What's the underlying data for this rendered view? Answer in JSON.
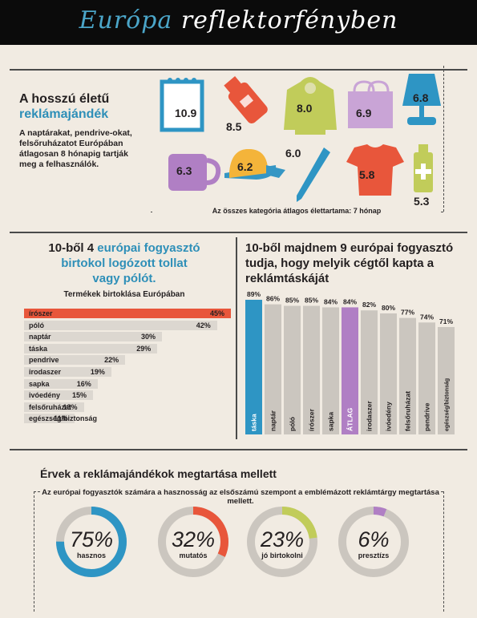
{
  "header": {
    "title_part1": "Európa",
    "title_part2": "reflektorfényben"
  },
  "lifetime": {
    "title_line1": "A hosszú életű",
    "title_line2": "reklámajándék",
    "description": "A naptárakat, pendrive-okat, felsőruházatot Európában átlagosan 8 hónapig tartják meg a felhasználók.",
    "average_note": "Az összes kategória átlagos élettartama: 7 hónap",
    "items": [
      {
        "icon": "calendar-icon",
        "value": "10.9"
      },
      {
        "icon": "usb-drive-icon",
        "value": "8.5"
      },
      {
        "icon": "hoodie-icon",
        "value": "8.0"
      },
      {
        "icon": "bag-icon",
        "value": "6.9"
      },
      {
        "icon": "lamp-icon",
        "value": "6.8"
      },
      {
        "icon": "mug-icon",
        "value": "6.3"
      },
      {
        "icon": "cap-icon",
        "value": "6.2"
      },
      {
        "icon": "pen-icon",
        "value": "6.0"
      },
      {
        "icon": "tshirt-icon",
        "value": "5.8"
      },
      {
        "icon": "medicine-bottle-icon",
        "value": "5.3"
      }
    ]
  },
  "ownership": {
    "title_prefix": "10-ből 4 ",
    "title_highlight": "európai fogyasztó",
    "title_line2": "birtokol logózott tollat",
    "title_line3": "vagy pólót.",
    "subtitle": "Termékek birtoklása Európában"
  },
  "recall": {
    "title": "10-ből majdnem 9 európai fogyasztó tudja, hogy melyik cégtől kapta a reklámtáskáját"
  },
  "reasons": {
    "title": "Érvek a reklámajándékok megtartása mellett",
    "description": "Az európai fogyasztók számára a hasznosság az elsőszámú szempont a emblémázott reklámtárgy megtartása mellett.",
    "items": [
      {
        "percent": "75%",
        "value": 75,
        "label": "hasznos",
        "color": "#2e95c4"
      },
      {
        "percent": "32%",
        "value": 32,
        "label": "mutatós",
        "color": "#e8563b"
      },
      {
        "percent": "23%",
        "value": 23,
        "label": "jó birtokolni",
        "color": "#c1cc5a"
      },
      {
        "percent": "6%",
        "value": 6,
        "label": "presztízs",
        "color": "#b07fc4"
      }
    ]
  },
  "colors": {
    "blue": "#2e95c4",
    "orange": "#e8563b",
    "purple": "#b07fc4",
    "green": "#c1cc5a",
    "gray": "#cbc6bf"
  },
  "chart_data": [
    {
      "type": "bar",
      "orientation": "horizontal",
      "title": "Termékek birtoklása Európában",
      "categories": [
        "írószer",
        "póló",
        "naptár",
        "táska",
        "pendrive",
        "irodaszer",
        "sapka",
        "ivóedény",
        "felsőruházat",
        "egészség/biztonság"
      ],
      "values": [
        45,
        42,
        30,
        29,
        22,
        19,
        16,
        15,
        13,
        11
      ],
      "labels": [
        "45%",
        "42%",
        "30%",
        "29%",
        "22%",
        "19%",
        "16%",
        "15%",
        "13%",
        "11%"
      ],
      "highlight": "írószer",
      "xlim": [
        0,
        45
      ]
    },
    {
      "type": "bar",
      "orientation": "vertical",
      "categories": [
        "táska",
        "naptár",
        "póló",
        "írószer",
        "sapka",
        "ÁTLAG",
        "irodaszer",
        "ivóedény",
        "felsőruházat",
        "pendrive",
        "egészség/biztonság"
      ],
      "values": [
        89,
        86,
        85,
        85,
        84,
        84,
        82,
        80,
        77,
        74,
        71
      ],
      "labels": [
        "89%",
        "86%",
        "85%",
        "85%",
        "84%",
        "84%",
        "82%",
        "80%",
        "77%",
        "74%",
        "71%"
      ],
      "highlight": {
        "táska": "#2e95c4",
        "ÁTLAG": "#b07fc4"
      },
      "ylim": [
        0,
        89
      ]
    }
  ]
}
